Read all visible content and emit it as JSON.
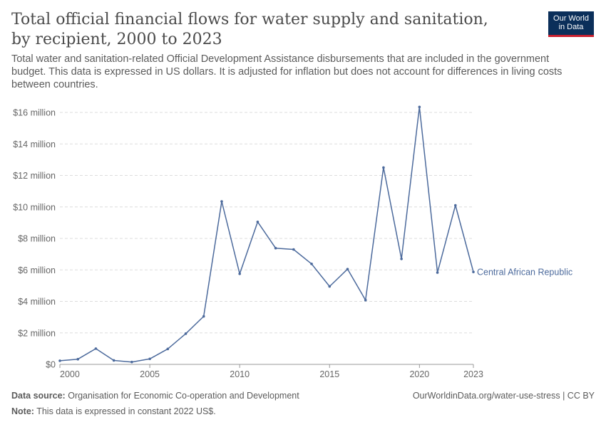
{
  "header": {
    "title": "Total official financial flows for water supply and sanitation, by recipient, 2000 to 2023",
    "subtitle": "Total water and sanitation-related Official Development Assistance disbursements that are included in the government budget. This data is expressed in US dollars. It is adjusted for inflation but does not account for differences in living costs between countries.",
    "logo_line1": "Our World",
    "logo_line2": "in Data"
  },
  "footer": {
    "source_label": "Data source:",
    "source_text": "Organisation for Economic Co-operation and Development",
    "url": "OurWorldinData.org/water-use-stress | CC BY",
    "note_label": "Note:",
    "note_text": "This data is expressed in constant 2022 US$."
  },
  "chart_data": {
    "type": "line",
    "title": "Total official financial flows for water supply and sanitation, by recipient, 2000 to 2023",
    "xlabel": "",
    "ylabel": "",
    "xlim": [
      2000,
      2023
    ],
    "ylim": [
      0,
      16000000
    ],
    "x_ticks": [
      2000,
      2005,
      2010,
      2015,
      2020,
      2023
    ],
    "y_ticks": [
      0,
      2000000,
      4000000,
      6000000,
      8000000,
      10000000,
      12000000,
      14000000,
      16000000
    ],
    "y_tick_labels": [
      "$0",
      "$2 million",
      "$4 million",
      "$6 million",
      "$8 million",
      "$10 million",
      "$12 million",
      "$14 million",
      "$16 million"
    ],
    "grid": "horizontal dashed",
    "series": [
      {
        "name": "Central African Republic",
        "color": "#4c6a9c",
        "x": [
          2000,
          2001,
          2002,
          2003,
          2004,
          2005,
          2006,
          2007,
          2008,
          2009,
          2010,
          2011,
          2012,
          2013,
          2014,
          2015,
          2016,
          2017,
          2018,
          2019,
          2020,
          2021,
          2022,
          2023
        ],
        "values": [
          230000,
          330000,
          1000000,
          250000,
          150000,
          350000,
          980000,
          1950000,
          3050000,
          10350000,
          5750000,
          9050000,
          7380000,
          7300000,
          6380000,
          4950000,
          6050000,
          4080000,
          12500000,
          6700000,
          16350000,
          5830000,
          10100000,
          5870000
        ]
      }
    ]
  }
}
